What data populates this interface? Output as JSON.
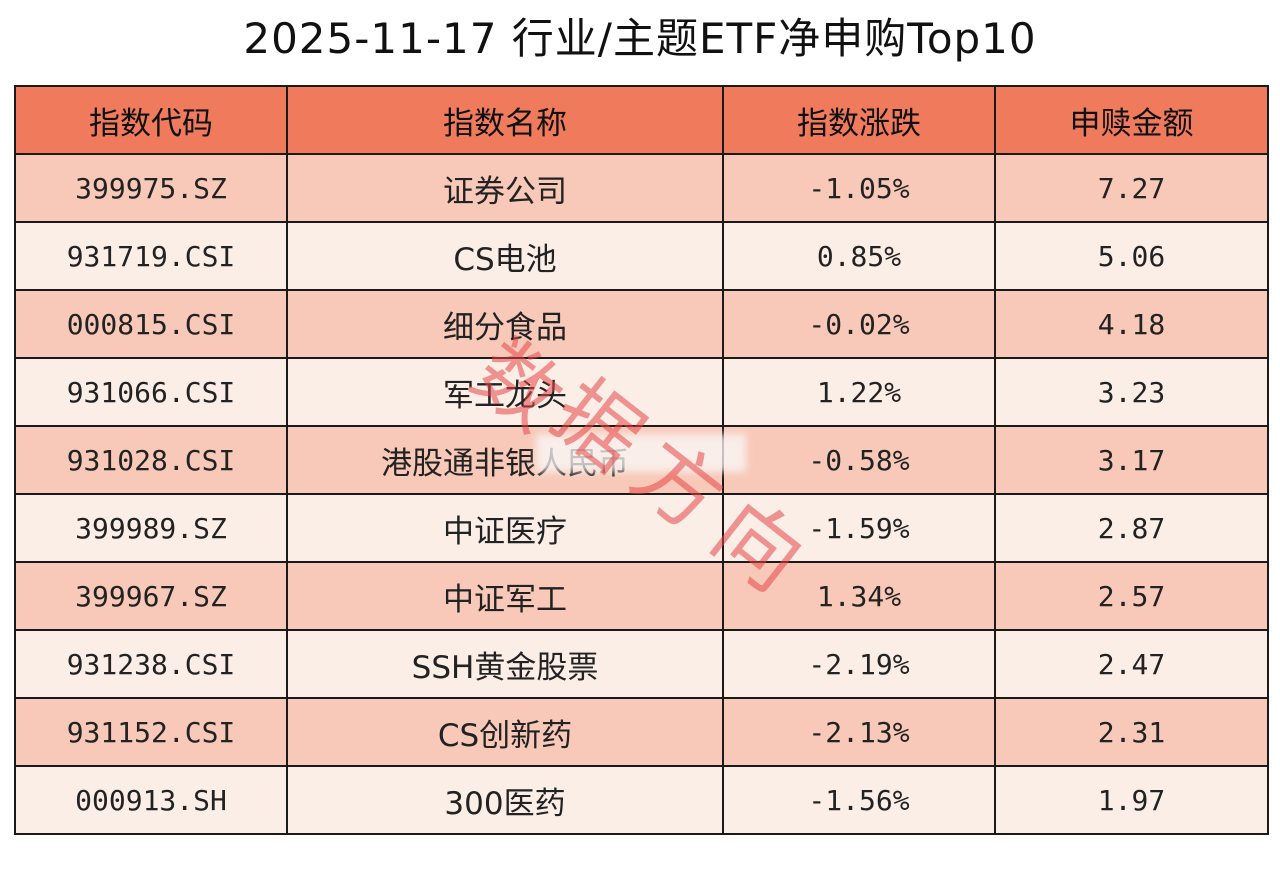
{
  "title": "2025-11-17 行业/主题ETF净申购Top10",
  "columns": [
    "指数代码",
    "指数名称",
    "指数涨跌",
    "申赎金额"
  ],
  "rows": [
    {
      "code": "399975.SZ",
      "name": "证券公司",
      "change": "-1.05%",
      "amount": "7.27"
    },
    {
      "code": "931719.CSI",
      "name": "CS电池",
      "change": "0.85%",
      "amount": "5.06"
    },
    {
      "code": "000815.CSI",
      "name": "细分食品",
      "change": "-0.02%",
      "amount": "4.18"
    },
    {
      "code": "931066.CSI",
      "name": "军工龙头",
      "change": "1.22%",
      "amount": "3.23"
    },
    {
      "code": "931028.CSI",
      "name": "港股通非银人民币",
      "change": "-0.58%",
      "amount": "3.17"
    },
    {
      "code": "399989.SZ",
      "name": "中证医疗",
      "change": "-1.59%",
      "amount": "2.87"
    },
    {
      "code": "399967.SZ",
      "name": "中证军工",
      "change": "1.34%",
      "amount": "2.57"
    },
    {
      "code": "931238.CSI",
      "name": "SSH黄金股票",
      "change": "-2.19%",
      "amount": "2.47"
    },
    {
      "code": "931152.CSI",
      "name": "CS创新药",
      "change": "-2.13%",
      "amount": "2.31"
    },
    {
      "code": "000913.SH",
      "name": "300医药",
      "change": "-1.56%",
      "amount": "1.97"
    }
  ],
  "watermark": "数据方向",
  "colors": {
    "header_bg": "#f07a5c",
    "row_odd_bg": "#f8c9b8",
    "row_even_bg": "#fbeee7",
    "watermark": "#e64646"
  },
  "chart_data": {
    "type": "table",
    "title": "2025-11-17 行业/主题ETF净申购Top10",
    "columns": [
      "指数代码",
      "指数名称",
      "指数涨跌",
      "申赎金额"
    ],
    "rows": [
      [
        "399975.SZ",
        "证券公司",
        "-1.05%",
        "7.27"
      ],
      [
        "931719.CSI",
        "CS电池",
        "0.85%",
        "5.06"
      ],
      [
        "000815.CSI",
        "细分食品",
        "-0.02%",
        "4.18"
      ],
      [
        "931066.CSI",
        "军工龙头",
        "1.22%",
        "3.23"
      ],
      [
        "931028.CSI",
        "港股通非银人民币",
        "-0.58%",
        "3.17"
      ],
      [
        "399989.SZ",
        "中证医疗",
        "-1.59%",
        "2.87"
      ],
      [
        "399967.SZ",
        "中证军工",
        "1.34%",
        "2.57"
      ],
      [
        "931238.CSI",
        "SSH黄金股票",
        "-2.19%",
        "2.47"
      ],
      [
        "931152.CSI",
        "CS创新药",
        "-2.13%",
        "2.31"
      ],
      [
        "000913.SH",
        "300医药",
        "-1.56%",
        "1.97"
      ]
    ]
  }
}
